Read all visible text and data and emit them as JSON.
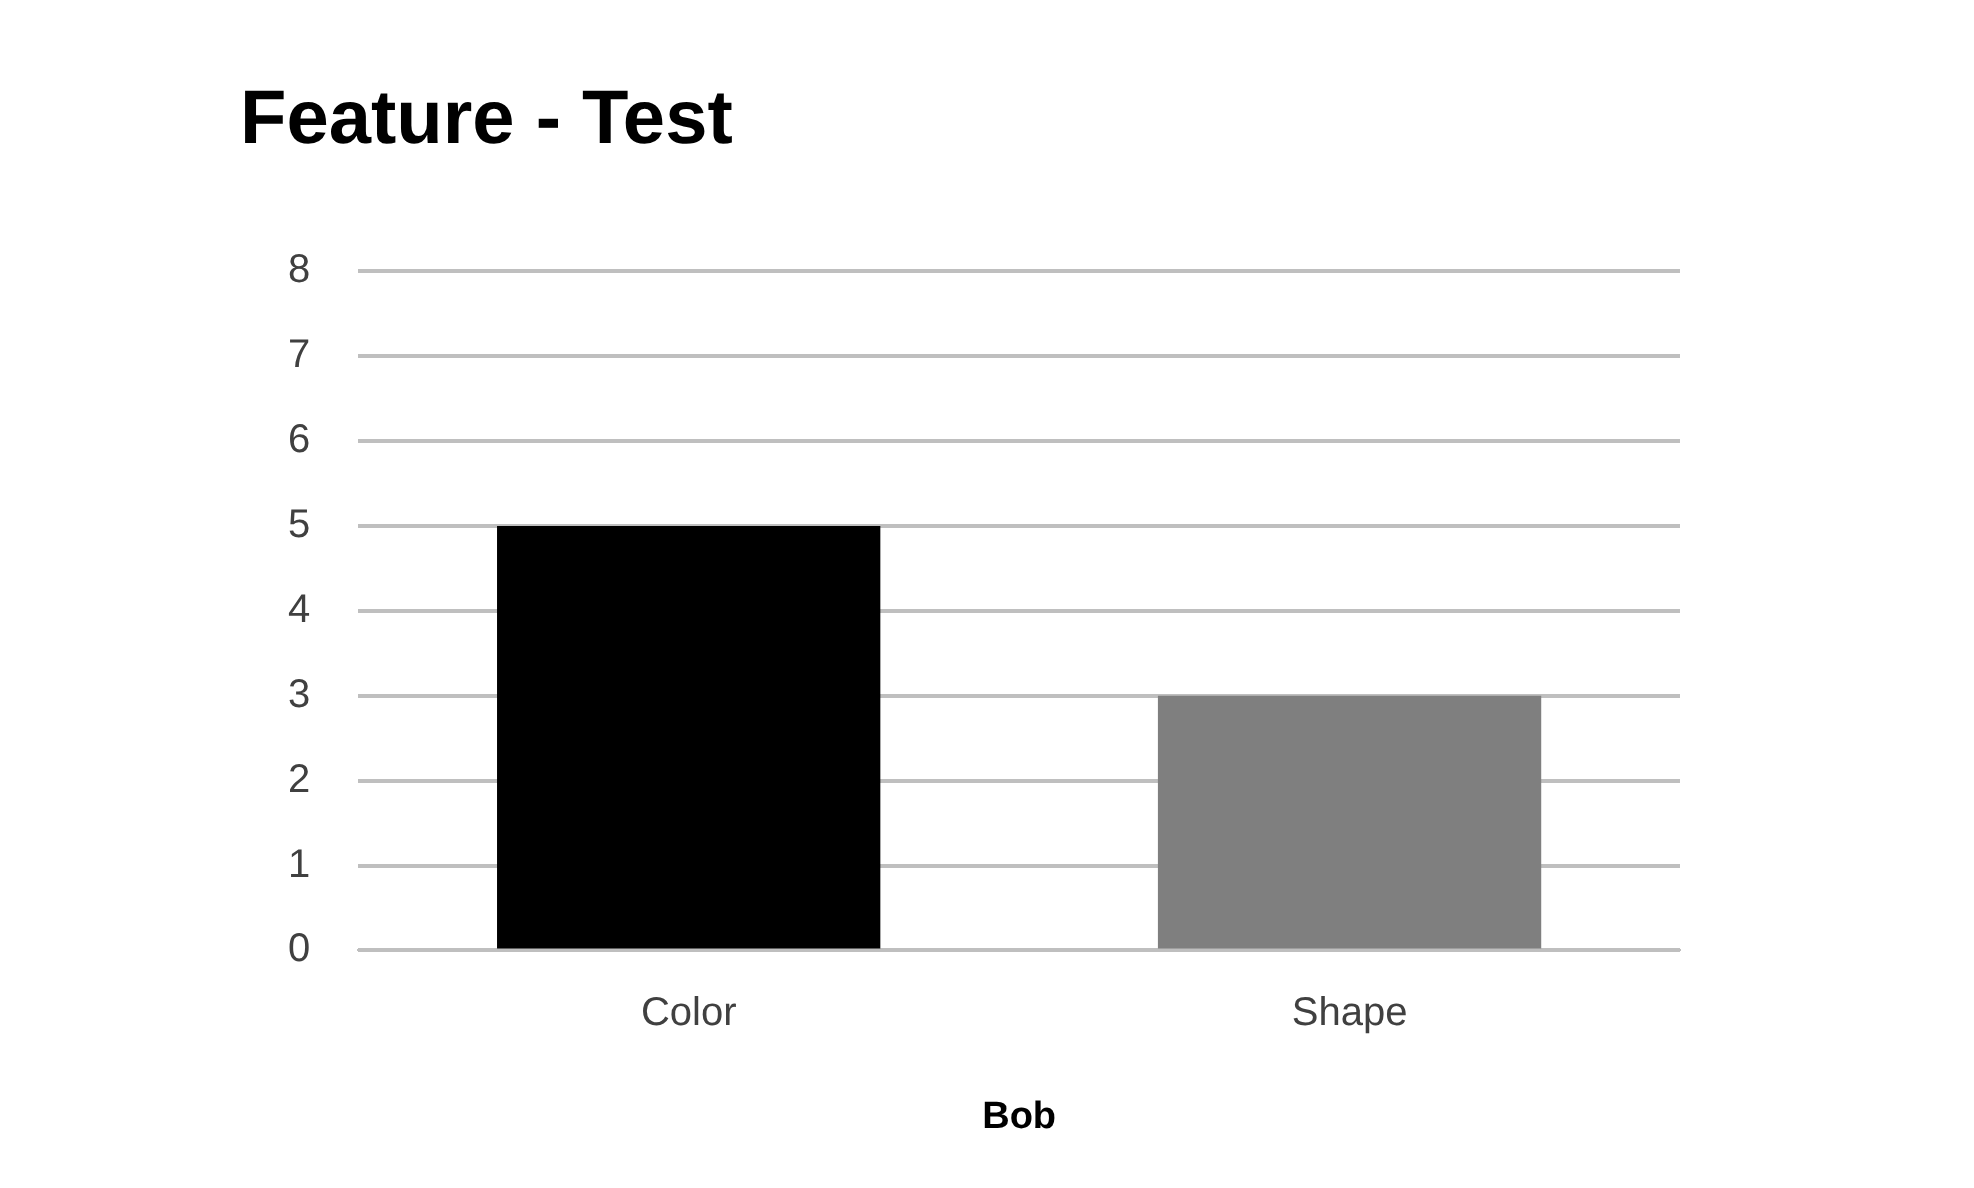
{
  "chart_data": {
    "type": "bar",
    "title": "Feature - Test",
    "xlabel": "Bob",
    "categories": [
      "Color",
      "Shape"
    ],
    "values": [
      5,
      3
    ],
    "colors": [
      "#000000",
      "#7f7f7f"
    ],
    "ylim": [
      0,
      8
    ],
    "yticks": [
      0,
      1,
      2,
      3,
      4,
      5,
      6,
      7,
      8
    ],
    "grid": "y",
    "legend": false
  }
}
